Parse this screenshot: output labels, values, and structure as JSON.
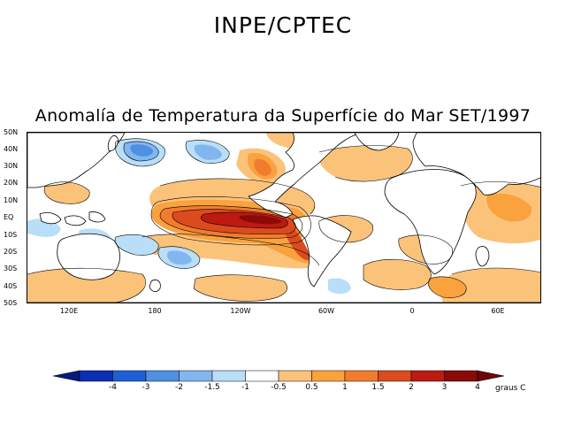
{
  "header": "INPE/CPTEC",
  "title": "Anomalía de Temperatura da Superfície do Mar SET/1997",
  "lat_labels": [
    "50N",
    "40N",
    "30N",
    "20N",
    "10N",
    "EQ",
    "10S",
    "20S",
    "30S",
    "40S",
    "50S"
  ],
  "lon_labels": [
    "120E",
    "180",
    "120W",
    "60W",
    "0",
    "60E"
  ],
  "colorbar": {
    "labels": [
      "-4",
      "-3",
      "-2",
      "-1.5",
      "-1",
      "-0.5",
      "0.5",
      "1",
      "1.5",
      "2",
      "3",
      "4"
    ],
    "colors": [
      "#0a2fb5",
      "#1f5fd6",
      "#4f8fe4",
      "#82b6ee",
      "#b9def7",
      "#ffffff",
      "#fbc27a",
      "#f9a23e",
      "#f27c2e",
      "#dc4a1f",
      "#bd1a12",
      "#8b0a08"
    ],
    "units": "graus C"
  },
  "colors": {
    "land_outline": "#000000",
    "contour": "#000000"
  }
}
